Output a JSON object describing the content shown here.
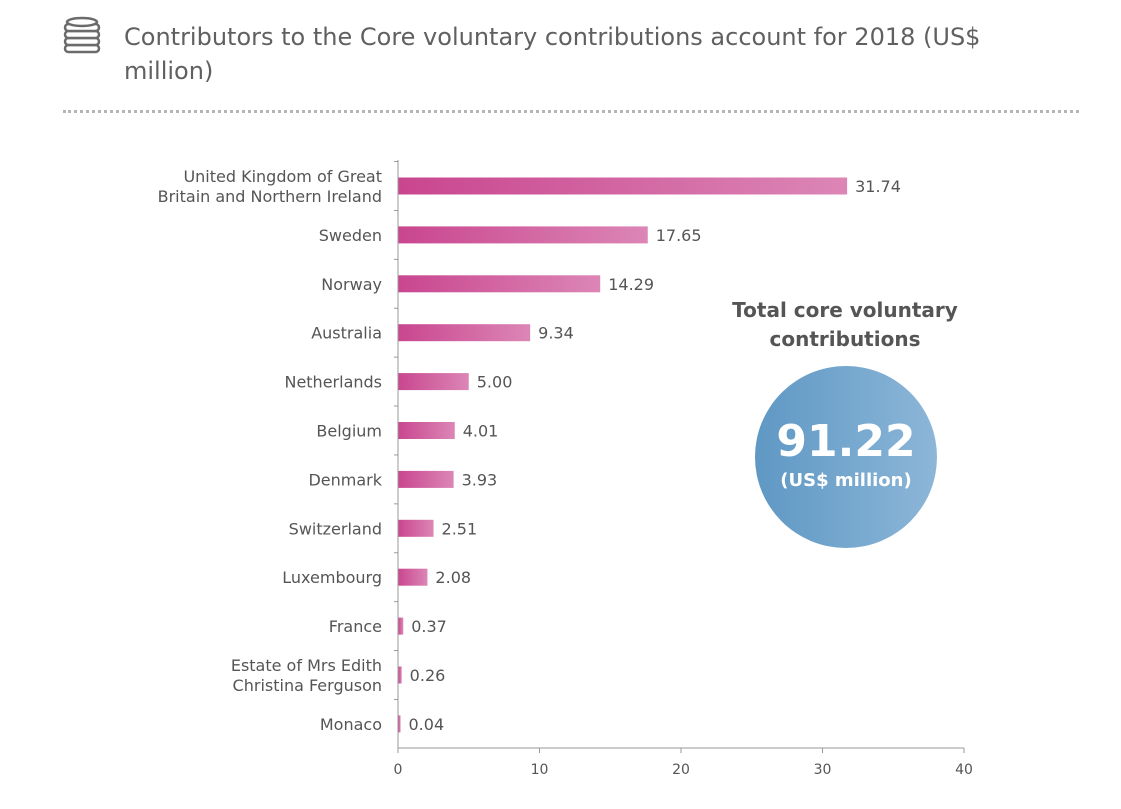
{
  "header": {
    "title": "Contributors to the Core voluntary contributions account for 2018 (US$ million)",
    "icon": "coin-stack-icon"
  },
  "total": {
    "heading": "Total core voluntary contributions",
    "value": "91.22",
    "unit": "(US$ million)"
  },
  "colors": {
    "bar_start": "#c9468f",
    "bar_end": "#dc86b6",
    "circle": "#6ea3cc",
    "axis": "#999999"
  },
  "chart_data": {
    "type": "bar",
    "orientation": "horizontal",
    "title": "Contributors to the Core voluntary contributions account for 2018 (US$ million)",
    "xlabel": "",
    "ylabel": "",
    "xlim": [
      0,
      40
    ],
    "ticks": [
      0,
      10,
      20,
      30,
      40
    ],
    "categories": [
      [
        "United Kingdom of Great",
        "Britain and Northern Ireland"
      ],
      [
        "Sweden"
      ],
      [
        "Norway"
      ],
      [
        "Australia"
      ],
      [
        "Netherlands"
      ],
      [
        "Belgium"
      ],
      [
        "Denmark"
      ],
      [
        "Switzerland"
      ],
      [
        "Luxembourg"
      ],
      [
        "France"
      ],
      [
        "Estate of Mrs Edith",
        "Christina Ferguson"
      ],
      [
        "Monaco"
      ]
    ],
    "values": [
      31.74,
      17.65,
      14.29,
      9.34,
      5.0,
      4.01,
      3.93,
      2.51,
      2.08,
      0.37,
      0.26,
      0.04
    ],
    "value_labels": [
      "31.74",
      "17.65",
      "14.29",
      "9.34",
      "5.00",
      "4.01",
      "3.93",
      "2.51",
      "2.08",
      "0.37",
      "0.26",
      "0.04"
    ]
  }
}
